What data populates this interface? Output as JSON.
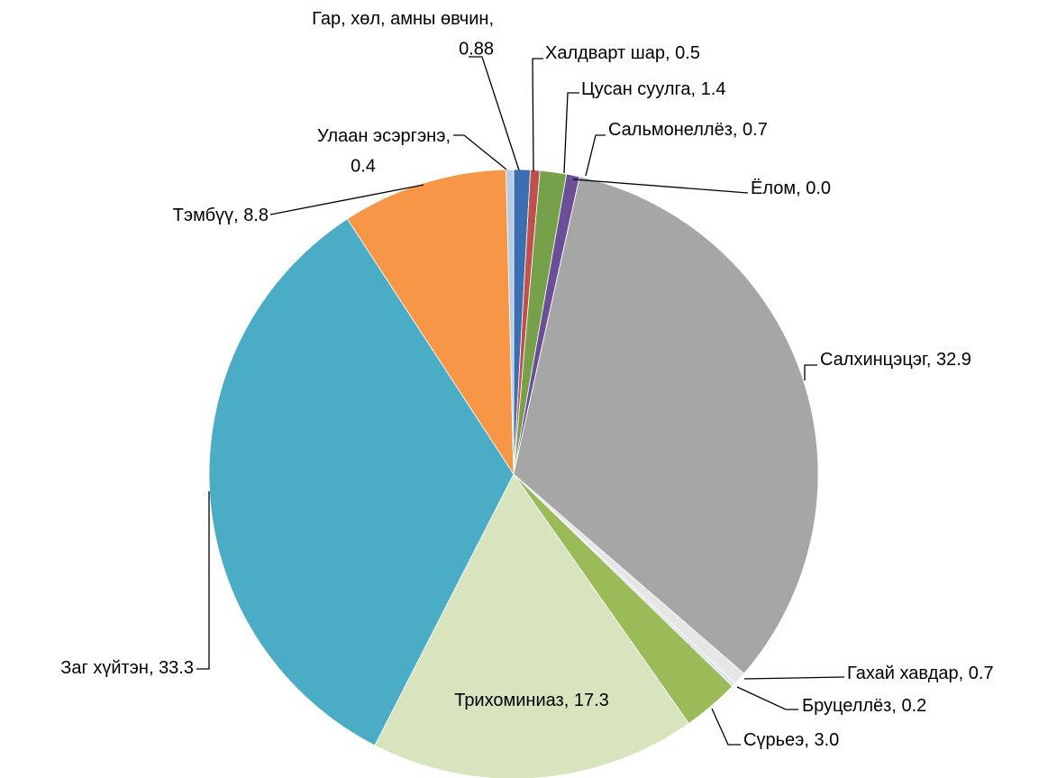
{
  "chart_data": {
    "type": "pie",
    "categories": [
      "Гар, хөл, амны өвчин",
      "Халдварт шар",
      "Цусан суулга",
      "Сальмонеллёз",
      "Ёлом",
      "Салхинцэцэг",
      "Гахай хавдар",
      "Бруцеллёз",
      "Сүрьеэ",
      "Трихоминиаз",
      "Заг  хүйтэн",
      "Тэмбүү",
      "Улаан эсэргэнэ"
    ],
    "values": [
      0.88,
      0.5,
      1.4,
      0.7,
      0.0,
      32.9,
      0.7,
      0.2,
      3.0,
      17.3,
      33.3,
      8.8,
      0.4
    ],
    "value_labels": [
      "0.88",
      "0.5",
      "1.4",
      "0.7",
      "0.0",
      "32.9",
      "0.7",
      "0.2",
      "3.0",
      "17.3",
      "33.3",
      "8.8",
      "0.4"
    ],
    "colors": [
      "#3b6fb2",
      "#c0504d",
      "#77a04a",
      "#6b4f96",
      "#4bacc6",
      "#a6a6a6",
      "#e6e6e6",
      "#dce4ef",
      "#9bbb59",
      "#d7e4bd",
      "#4bacc6",
      "#f79646",
      "#b8cce4"
    ]
  }
}
